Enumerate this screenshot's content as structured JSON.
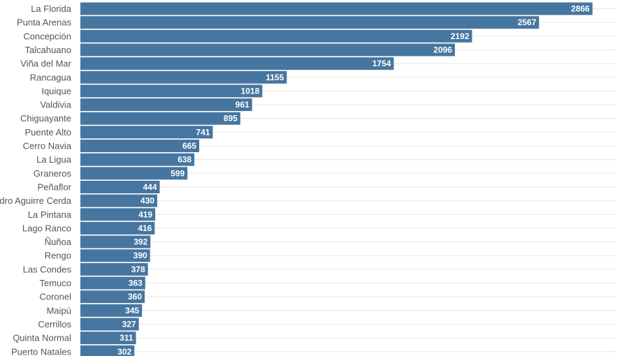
{
  "chart_data": {
    "type": "bar",
    "orientation": "horizontal",
    "categories": [
      "La Florida",
      "Punta Arenas",
      "Concepción",
      "Talcahuano",
      "Viña del Mar",
      "Rancagua",
      "Iquique",
      "Valdivia",
      "Chiguayante",
      "Puente Alto",
      "Cerro Navia",
      "La Ligua",
      "Graneros",
      "Peñaflor",
      "Pedro Aguirre Cerda",
      "La Pintana",
      "Lago Ranco",
      "Ñuñoa",
      "Rengo",
      "Las Condes",
      "Temuco",
      "Coronel",
      "Maipú",
      "Cerrillos",
      "Quinta Normal",
      "Puerto Natales"
    ],
    "values": [
      2866,
      2567,
      2192,
      2096,
      1754,
      1155,
      1018,
      961,
      895,
      741,
      665,
      638,
      599,
      444,
      430,
      419,
      416,
      392,
      390,
      378,
      363,
      360,
      345,
      327,
      311,
      302
    ],
    "xlim": [
      0,
      3000
    ],
    "grid": true,
    "legend": "none",
    "colors": {
      "bar": "#4676a0",
      "value_text": "#ffffff",
      "category_text": "#555555",
      "grid": "#e6e6e6"
    }
  }
}
